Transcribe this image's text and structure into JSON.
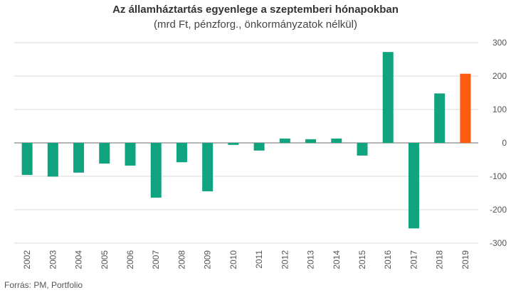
{
  "chart_data": {
    "type": "bar",
    "title": "Az államháztartás egyenlege a szeptemberi hónapokban",
    "subtitle": "(mrd Ft, pénzforg., önkormányzatok nélkül)",
    "categories": [
      "2002",
      "2003",
      "2004",
      "2005",
      "2006",
      "2007",
      "2008",
      "2009",
      "2010",
      "2011",
      "2012",
      "2013",
      "2014",
      "2015",
      "2016",
      "2017",
      "2018",
      "2019"
    ],
    "values": [
      -96,
      -101,
      -89,
      -62,
      -68,
      -164,
      -58,
      -145,
      -6,
      -23,
      13,
      11,
      13,
      -38,
      272,
      -256,
      148,
      207
    ],
    "ylim": [
      -300,
      300
    ],
    "yticks": [
      -300,
      -200,
      -100,
      0,
      100,
      200,
      300
    ],
    "yaxis_position": "right",
    "grid": true,
    "colors": {
      "default_bar": "#0fa37f",
      "highlight_bar": "#ff5b0f",
      "highlight_category": "2019"
    },
    "source": "Forrás: PM, Portfolio"
  }
}
